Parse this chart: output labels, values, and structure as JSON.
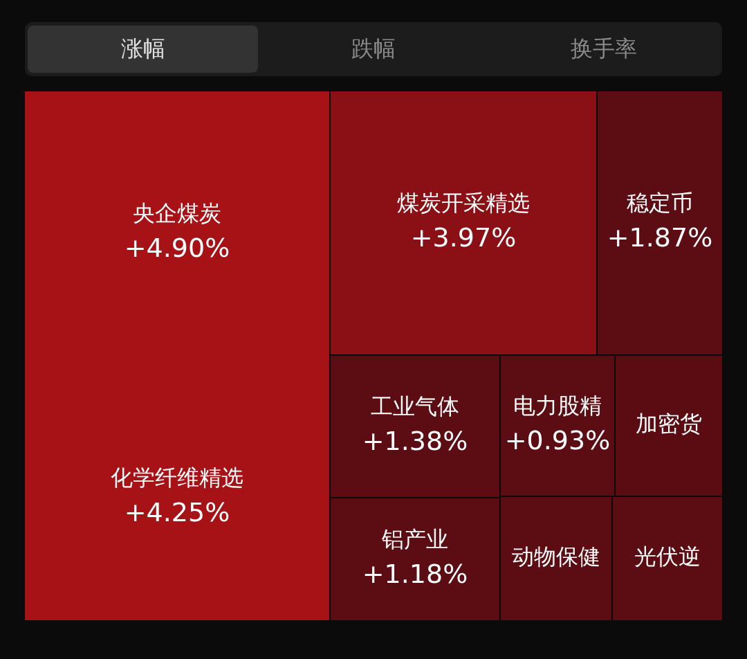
{
  "chart_data": {
    "type": "other",
    "categories": [
      "央企煤炭",
      "化学纤维精选",
      "煤炭开采精选",
      "稳定币",
      "工业气体",
      "电力股精",
      "加密货",
      "铝产业",
      "动物保健",
      "光伏逆"
    ],
    "values": [
      4.9,
      4.25,
      3.97,
      1.87,
      1.38,
      0.93,
      null,
      1.18,
      null,
      null
    ],
    "value_labels": [
      "+4.90%",
      "+4.25%",
      "+3.97%",
      "+1.87%",
      "+1.38%",
      "+0.93%",
      null,
      "+1.18%",
      null,
      null
    ],
    "colors": [
      null,
      null,
      null,
      null,
      null,
      null,
      "#5a0c12",
      null,
      "#5c0d13",
      "#5c0d13"
    ],
    "annotations": [
      "涨幅",
      "跌幅",
      "换手率"
    ]
  }
}
